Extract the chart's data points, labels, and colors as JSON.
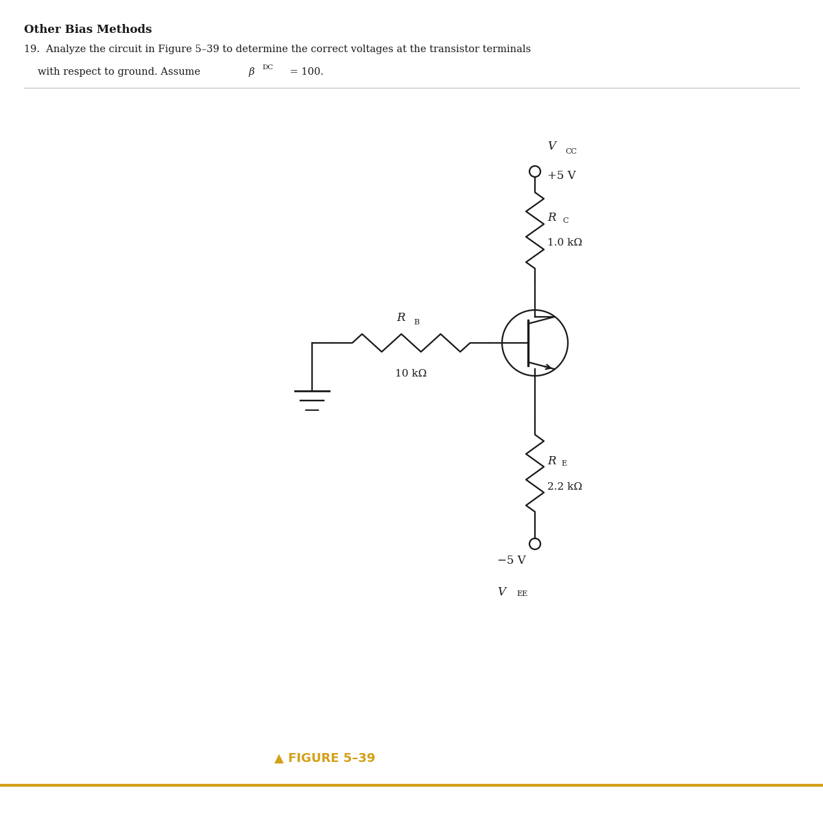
{
  "title": "Other Bias Methods",
  "prob_line1": "19.  Analyze the circuit in Figure 5–39 to determine the correct voltages at the transistor terminals",
  "prob_line2": "     with respect to ground. Assume β",
  "prob_beta_sub": "DC",
  "prob_end": " = 100.",
  "figure_label": "▲ FIGURE 5–39",
  "vcc_italic": "V",
  "vcc_sub": "CC",
  "vcc_val": "+5 V",
  "vee_val": "−5 V",
  "vee_italic": "V",
  "vee_sub": "EE",
  "rc_italic": "R",
  "rc_sub": "C",
  "rc_val": "1.0 kΩ",
  "rb_italic": "R",
  "rb_sub": "B",
  "rb_val": "10 kΩ",
  "re_italic": "R",
  "re_sub": "E",
  "re_val": "2.2 kΩ",
  "bg_color": "#ffffff",
  "line_color": "#1a1a1a",
  "text_color": "#1a1a1a",
  "figure_label_color": "#d4a017",
  "figure_line_color": "#d4a017"
}
